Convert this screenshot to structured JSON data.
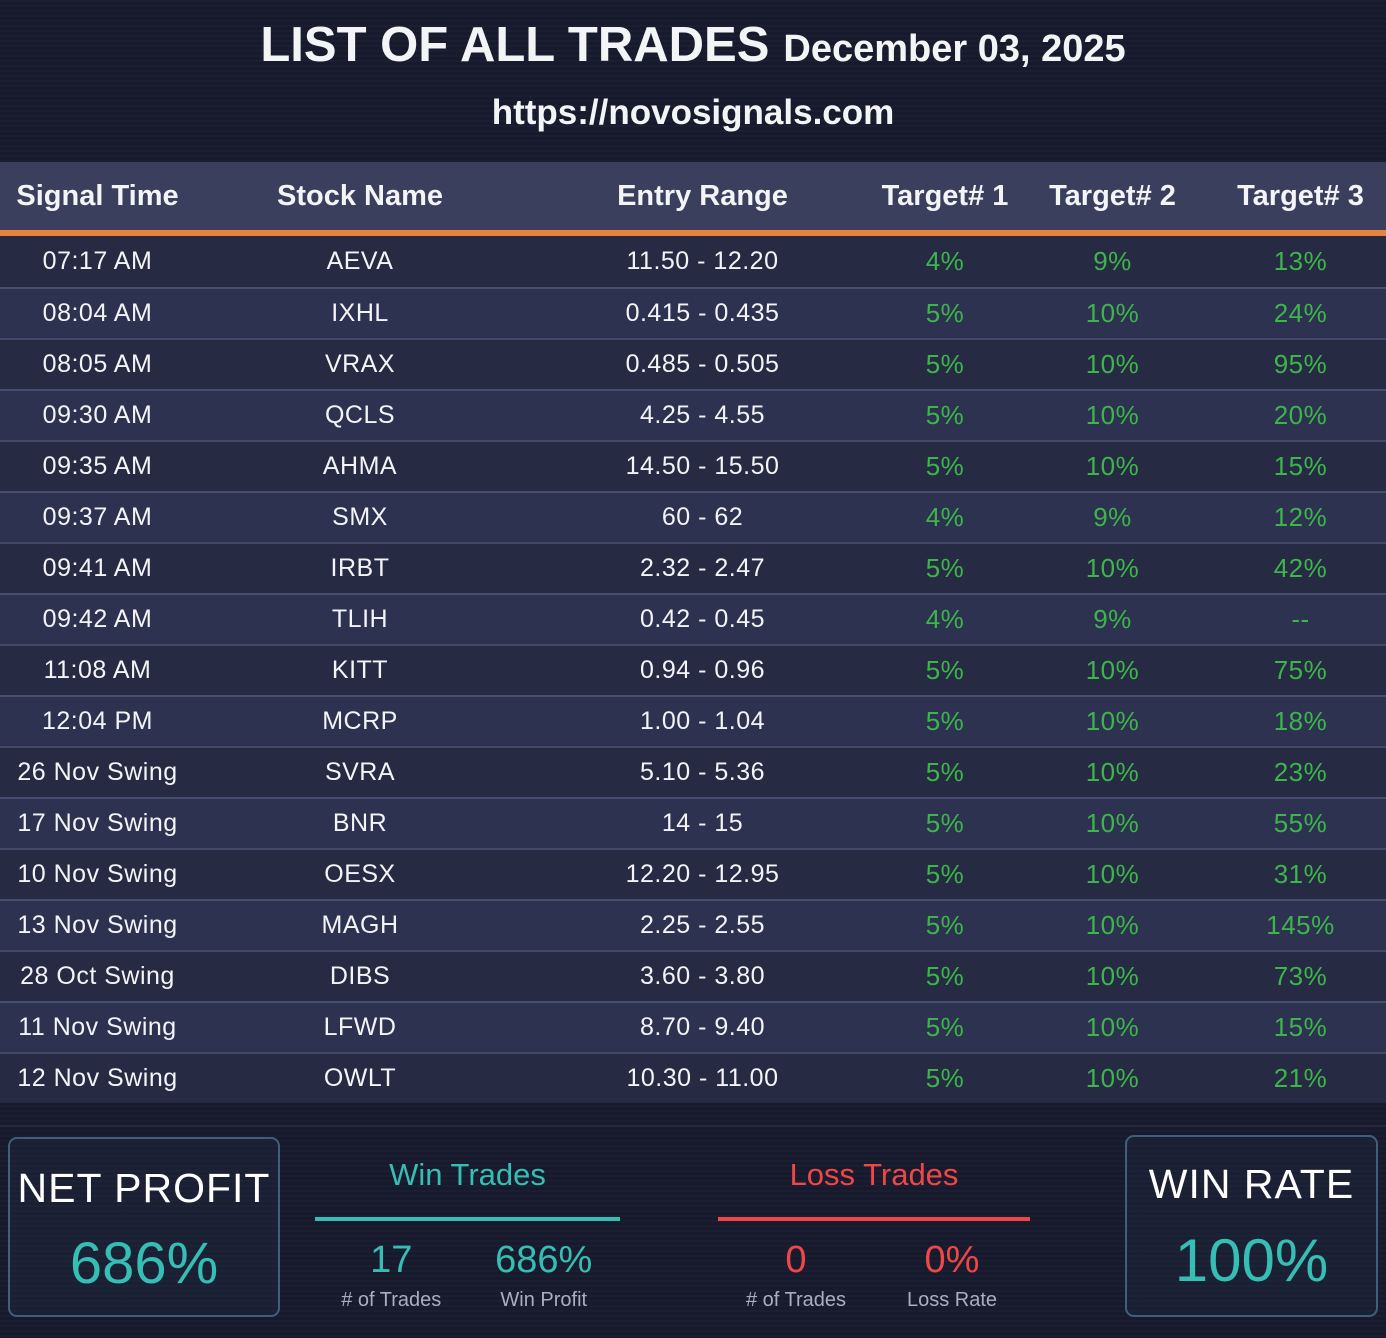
{
  "banner": {
    "title": "LIST OF ALL TRADES",
    "date": "December 03, 2025",
    "url": "https://novosignals.com"
  },
  "table": {
    "columns": [
      "Signal Time",
      "Stock Name",
      "Entry Range",
      "Target# 1",
      "Target# 2",
      "Target# 3"
    ],
    "rows": [
      {
        "time": "07:17 AM",
        "stock": "AEVA",
        "entry": "11.50 - 12.20",
        "t1": "4%",
        "t2": "9%",
        "t3": "13%"
      },
      {
        "time": "08:04 AM",
        "stock": "IXHL",
        "entry": "0.415 - 0.435",
        "t1": "5%",
        "t2": "10%",
        "t3": "24%"
      },
      {
        "time": "08:05 AM",
        "stock": "VRAX",
        "entry": "0.485 - 0.505",
        "t1": "5%",
        "t2": "10%",
        "t3": "95%"
      },
      {
        "time": "09:30 AM",
        "stock": "QCLS",
        "entry": "4.25 - 4.55",
        "t1": "5%",
        "t2": "10%",
        "t3": "20%"
      },
      {
        "time": "09:35 AM",
        "stock": "AHMA",
        "entry": "14.50 - 15.50",
        "t1": "5%",
        "t2": "10%",
        "t3": "15%"
      },
      {
        "time": "09:37 AM",
        "stock": "SMX",
        "entry": "60 - 62",
        "t1": "4%",
        "t2": "9%",
        "t3": "12%"
      },
      {
        "time": "09:41 AM",
        "stock": "IRBT",
        "entry": "2.32 - 2.47",
        "t1": "5%",
        "t2": "10%",
        "t3": "42%"
      },
      {
        "time": "09:42 AM",
        "stock": "TLIH",
        "entry": "0.42 - 0.45",
        "t1": "4%",
        "t2": "9%",
        "t3": "--"
      },
      {
        "time": "11:08 AM",
        "stock": "KITT",
        "entry": "0.94 - 0.96",
        "t1": "5%",
        "t2": "10%",
        "t3": "75%"
      },
      {
        "time": "12:04 PM",
        "stock": "MCRP",
        "entry": "1.00 - 1.04",
        "t1": "5%",
        "t2": "10%",
        "t3": "18%"
      },
      {
        "time": "26 Nov Swing",
        "stock": "SVRA",
        "entry": "5.10 - 5.36",
        "t1": "5%",
        "t2": "10%",
        "t3": "23%"
      },
      {
        "time": "17 Nov Swing",
        "stock": "BNR",
        "entry": "14 - 15",
        "t1": "5%",
        "t2": "10%",
        "t3": "55%"
      },
      {
        "time": "10 Nov Swing",
        "stock": "OESX",
        "entry": "12.20 - 12.95",
        "t1": "5%",
        "t2": "10%",
        "t3": "31%"
      },
      {
        "time": "13 Nov Swing",
        "stock": "MAGH",
        "entry": "2.25 - 2.55",
        "t1": "5%",
        "t2": "10%",
        "t3": "145%"
      },
      {
        "time": "28 Oct Swing",
        "stock": "DIBS",
        "entry": "3.60 - 3.80",
        "t1": "5%",
        "t2": "10%",
        "t3": "73%"
      },
      {
        "time": "11 Nov Swing",
        "stock": "LFWD",
        "entry": "8.70 - 9.40",
        "t1": "5%",
        "t2": "10%",
        "t3": "15%"
      },
      {
        "time": "12 Nov Swing",
        "stock": "OWLT",
        "entry": "10.30 - 11.00",
        "t1": "5%",
        "t2": "10%",
        "t3": "21%"
      }
    ]
  },
  "summary": {
    "net_profit": {
      "label": "NET PROFIT",
      "value": "686%"
    },
    "win_trades": {
      "title": "Win Trades",
      "count": "17",
      "count_label": "# of Trades",
      "profit": "686%",
      "profit_label": "Win Profit"
    },
    "loss_trades": {
      "title": "Loss Trades",
      "count": "0",
      "count_label": "# of Trades",
      "rate": "0%",
      "rate_label": "Loss Rate"
    },
    "win_rate": {
      "label": "WIN RATE",
      "value": "100%"
    }
  },
  "colors": {
    "background": "#171b2d",
    "header_band": "#3a3f5e",
    "row_odd": "#262a43",
    "row_even": "#2d3250",
    "accent_orange": "#e8833c",
    "accent_green": "#3cb54a",
    "accent_teal": "#36bdb4",
    "accent_red": "#ef4747",
    "label_gray": "#a9aebc",
    "box_border": "#3f5f7a"
  }
}
